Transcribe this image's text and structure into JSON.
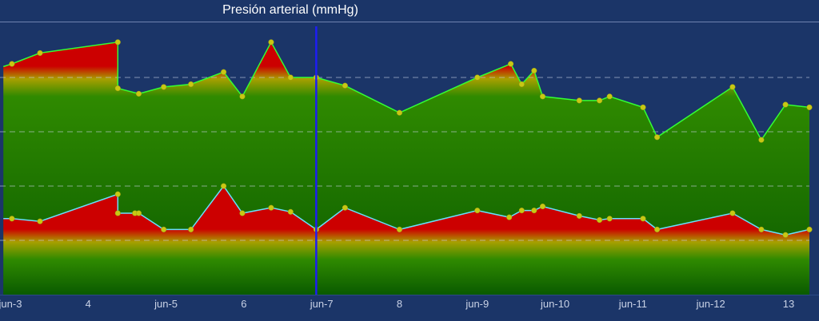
{
  "chart_data": {
    "type": "area",
    "title": "Presión arterial (mmHg)",
    "x_unit": "day (June)",
    "xlim": [
      2.9,
      13.42
    ],
    "ylim": [
      60,
      170
    ],
    "y_gridlines": [
      80,
      100,
      120,
      140
    ],
    "grid": "horizontal dashed",
    "x_ticks": [
      {
        "x": 3,
        "label": "jun-3"
      },
      {
        "x": 4,
        "label": "4"
      },
      {
        "x": 5,
        "label": "jun-5"
      },
      {
        "x": 6,
        "label": "6"
      },
      {
        "x": 7,
        "label": "jun-7"
      },
      {
        "x": 8,
        "label": "8"
      },
      {
        "x": 9,
        "label": "jun-9"
      },
      {
        "x": 10,
        "label": "jun-10"
      },
      {
        "x": 11,
        "label": "jun-11"
      },
      {
        "x": 12,
        "label": "jun-12"
      },
      {
        "x": 13,
        "label": "13"
      }
    ],
    "cursor_x": 6.93,
    "series": [
      {
        "line_color": "#33ff33",
        "threshold": 140,
        "points": [
          [
            2.91,
            144
          ],
          [
            3.02,
            145
          ],
          [
            3.38,
            149
          ],
          [
            4.38,
            153
          ],
          [
            4.38,
            136
          ],
          [
            4.65,
            134
          ],
          [
            4.97,
            136.5
          ],
          [
            5.32,
            137.5
          ],
          [
            5.74,
            142
          ],
          [
            5.98,
            133
          ],
          [
            6.35,
            153
          ],
          [
            6.6,
            140
          ],
          [
            6.93,
            140
          ],
          [
            7.3,
            137
          ],
          [
            8.0,
            127
          ],
          [
            9.0,
            140
          ],
          [
            9.43,
            145
          ],
          [
            9.57,
            137.5
          ],
          [
            9.73,
            142.5
          ],
          [
            9.84,
            133
          ],
          [
            10.31,
            131.5
          ],
          [
            10.57,
            131.5
          ],
          [
            10.7,
            133
          ],
          [
            11.13,
            129
          ],
          [
            11.31,
            118
          ],
          [
            12.28,
            136.5
          ],
          [
            12.65,
            117
          ],
          [
            12.96,
            130
          ],
          [
            13.36,
            129
          ]
        ]
      },
      {
        "line_color": "#66e0ff",
        "threshold": 80,
        "points": [
          [
            2.91,
            88
          ],
          [
            3.02,
            88
          ],
          [
            3.38,
            87
          ],
          [
            4.38,
            97
          ],
          [
            4.38,
            90
          ],
          [
            4.6,
            90
          ],
          [
            4.65,
            90
          ],
          [
            4.97,
            84
          ],
          [
            5.32,
            84
          ],
          [
            5.74,
            100
          ],
          [
            5.98,
            90
          ],
          [
            6.35,
            92
          ],
          [
            6.6,
            90.5
          ],
          [
            6.93,
            84
          ],
          [
            7.3,
            92
          ],
          [
            8.0,
            84
          ],
          [
            9.0,
            91
          ],
          [
            9.41,
            88.5
          ],
          [
            9.57,
            91
          ],
          [
            9.73,
            91
          ],
          [
            9.84,
            92.5
          ],
          [
            10.31,
            89
          ],
          [
            10.57,
            87.5
          ],
          [
            10.7,
            88
          ],
          [
            11.13,
            88
          ],
          [
            11.31,
            84
          ],
          [
            12.28,
            90
          ],
          [
            12.65,
            84
          ],
          [
            12.96,
            82
          ],
          [
            13.36,
            84
          ]
        ]
      }
    ]
  },
  "colors": {
    "background": "#1b3568",
    "area_top_high": "#cc0000",
    "area_mid": "#2f8a00",
    "area_bottom": "#0a5a00",
    "point_fill": "#c8c814",
    "cursor": "#1d1df5",
    "grid": "#c9d2e6"
  }
}
